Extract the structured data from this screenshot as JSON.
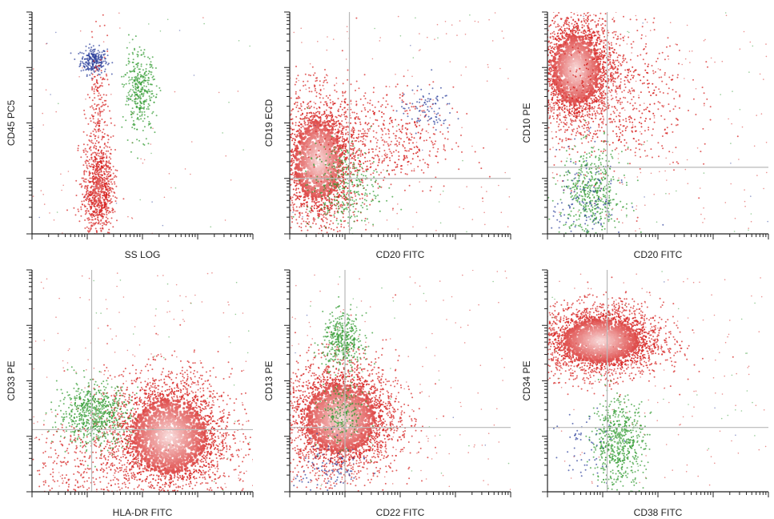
{
  "colors": {
    "background": "#ffffff",
    "axis": "#222222",
    "quadrant_line": "#b8b8b8",
    "populations": {
      "red": "#d6201e",
      "green": "#2f9a2f",
      "blue": "#2a3d9a"
    }
  },
  "chart_data": [
    {
      "type": "scatter",
      "title": "",
      "xlabel": "SS LOG",
      "ylabel": "CD45 PC5",
      "xlim": [
        0,
        1
      ],
      "ylim": [
        0,
        1
      ],
      "quadrant": null,
      "series": [
        {
          "color": "blue",
          "count": 260,
          "center": [
            0.28,
            0.78
          ],
          "spread": [
            0.03,
            0.03
          ]
        },
        {
          "color": "red",
          "count": 900,
          "center": [
            0.3,
            0.2
          ],
          "spread": [
            0.035,
            0.11
          ]
        },
        {
          "color": "red",
          "count": 180,
          "center": [
            0.3,
            0.55
          ],
          "spread": [
            0.025,
            0.15
          ]
        },
        {
          "color": "green",
          "count": 360,
          "center": [
            0.49,
            0.64
          ],
          "spread": [
            0.035,
            0.09
          ]
        }
      ]
    },
    {
      "type": "scatter",
      "title": "",
      "xlabel": "CD20 FITC",
      "ylabel": "CD19 ECD",
      "xlim": [
        0,
        1
      ],
      "ylim": [
        0,
        1
      ],
      "quadrant": [
        0.27,
        0.25
      ],
      "series": [
        {
          "color": "red",
          "count": 2200,
          "center": [
            0.13,
            0.33
          ],
          "spread": [
            0.09,
            0.15
          ]
        },
        {
          "color": "red",
          "count": 520,
          "center": [
            0.42,
            0.42
          ],
          "spread": [
            0.16,
            0.12
          ]
        },
        {
          "color": "green",
          "count": 320,
          "center": [
            0.24,
            0.21
          ],
          "spread": [
            0.08,
            0.1
          ]
        },
        {
          "color": "blue",
          "count": 90,
          "center": [
            0.62,
            0.56
          ],
          "spread": [
            0.06,
            0.05
          ]
        }
      ]
    },
    {
      "type": "scatter",
      "title": "",
      "xlabel": "CD20 FITC",
      "ylabel": "CD10 PE",
      "xlim": [
        0,
        1
      ],
      "ylim": [
        0,
        1
      ],
      "quadrant": [
        0.27,
        0.3
      ],
      "series": [
        {
          "color": "red",
          "count": 2400,
          "center": [
            0.13,
            0.74
          ],
          "spread": [
            0.09,
            0.13
          ]
        },
        {
          "color": "red",
          "count": 600,
          "center": [
            0.3,
            0.62
          ],
          "spread": [
            0.17,
            0.18
          ]
        },
        {
          "color": "green",
          "count": 480,
          "center": [
            0.2,
            0.18
          ],
          "spread": [
            0.07,
            0.1
          ]
        },
        {
          "color": "blue",
          "count": 140,
          "center": [
            0.18,
            0.15
          ],
          "spread": [
            0.08,
            0.12
          ]
        }
      ]
    },
    {
      "type": "scatter",
      "title": "",
      "xlabel": "HLA-DR FITC",
      "ylabel": "CD33 PE",
      "xlim": [
        0,
        1
      ],
      "ylim": [
        0,
        1
      ],
      "quadrant": [
        0.27,
        0.28
      ],
      "series": [
        {
          "color": "red",
          "count": 3000,
          "center": [
            0.62,
            0.25
          ],
          "spread": [
            0.14,
            0.14
          ]
        },
        {
          "color": "green",
          "count": 650,
          "center": [
            0.28,
            0.35
          ],
          "spread": [
            0.08,
            0.07
          ]
        },
        {
          "color": "red",
          "count": 300,
          "center": [
            0.2,
            0.12
          ],
          "spread": [
            0.14,
            0.1
          ]
        }
      ]
    },
    {
      "type": "scatter",
      "title": "",
      "xlabel": "CD22 FITC",
      "ylabel": "CD13 PE",
      "xlim": [
        0,
        1
      ],
      "ylim": [
        0,
        1
      ],
      "quadrant": [
        0.25,
        0.29
      ],
      "series": [
        {
          "color": "red",
          "count": 3000,
          "center": [
            0.23,
            0.33
          ],
          "spread": [
            0.13,
            0.13
          ]
        },
        {
          "color": "green",
          "count": 400,
          "center": [
            0.24,
            0.68
          ],
          "spread": [
            0.045,
            0.06
          ]
        },
        {
          "color": "green",
          "count": 200,
          "center": [
            0.24,
            0.35
          ],
          "spread": [
            0.05,
            0.07
          ]
        },
        {
          "color": "blue",
          "count": 100,
          "center": [
            0.18,
            0.1
          ],
          "spread": [
            0.08,
            0.07
          ]
        }
      ]
    },
    {
      "type": "scatter",
      "title": "",
      "xlabel": "CD38 FITC",
      "ylabel": "CD34 PE",
      "xlim": [
        0,
        1
      ],
      "ylim": [
        0,
        1
      ],
      "quadrant": [
        0.27,
        0.29
      ],
      "series": [
        {
          "color": "red",
          "count": 2800,
          "center": [
            0.24,
            0.68
          ],
          "spread": [
            0.14,
            0.08
          ]
        },
        {
          "color": "green",
          "count": 600,
          "center": [
            0.32,
            0.22
          ],
          "spread": [
            0.06,
            0.1
          ]
        },
        {
          "color": "blue",
          "count": 60,
          "center": [
            0.18,
            0.2
          ],
          "spread": [
            0.08,
            0.1
          ]
        }
      ]
    }
  ]
}
